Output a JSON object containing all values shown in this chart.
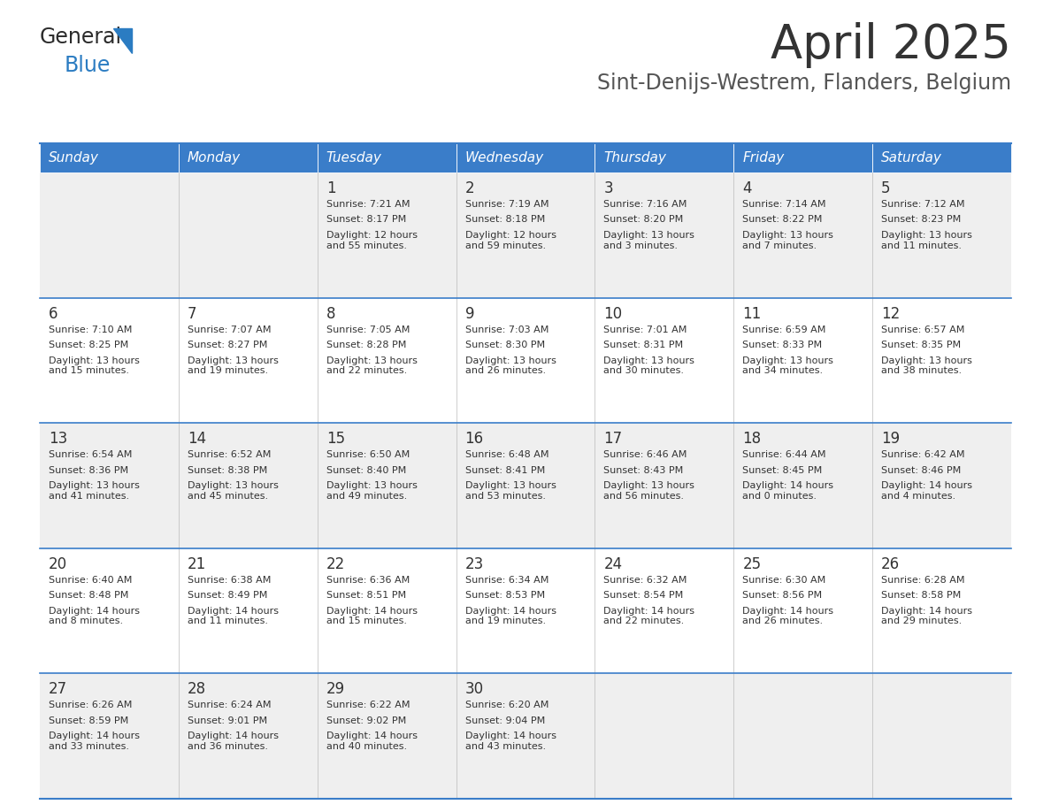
{
  "title": "April 2025",
  "subtitle": "Sint-Denijs-Westrem, Flanders, Belgium",
  "days_of_week": [
    "Sunday",
    "Monday",
    "Tuesday",
    "Wednesday",
    "Thursday",
    "Friday",
    "Saturday"
  ],
  "header_bg": "#3A7DC9",
  "header_text": "#FFFFFF",
  "row_bg_even": "#EFEFEF",
  "row_bg_odd": "#FFFFFF",
  "separator_color": "#3A7DC9",
  "title_color": "#333333",
  "subtitle_color": "#555555",
  "cell_text_color": "#333333",
  "day_number_color": "#333333",
  "calendar": [
    [
      {
        "day": "",
        "sunrise": "",
        "sunset": "",
        "daylight": ""
      },
      {
        "day": "",
        "sunrise": "",
        "sunset": "",
        "daylight": ""
      },
      {
        "day": "1",
        "sunrise": "Sunrise: 7:21 AM",
        "sunset": "Sunset: 8:17 PM",
        "daylight": "Daylight: 12 hours\nand 55 minutes."
      },
      {
        "day": "2",
        "sunrise": "Sunrise: 7:19 AM",
        "sunset": "Sunset: 8:18 PM",
        "daylight": "Daylight: 12 hours\nand 59 minutes."
      },
      {
        "day": "3",
        "sunrise": "Sunrise: 7:16 AM",
        "sunset": "Sunset: 8:20 PM",
        "daylight": "Daylight: 13 hours\nand 3 minutes."
      },
      {
        "day": "4",
        "sunrise": "Sunrise: 7:14 AM",
        "sunset": "Sunset: 8:22 PM",
        "daylight": "Daylight: 13 hours\nand 7 minutes."
      },
      {
        "day": "5",
        "sunrise": "Sunrise: 7:12 AM",
        "sunset": "Sunset: 8:23 PM",
        "daylight": "Daylight: 13 hours\nand 11 minutes."
      }
    ],
    [
      {
        "day": "6",
        "sunrise": "Sunrise: 7:10 AM",
        "sunset": "Sunset: 8:25 PM",
        "daylight": "Daylight: 13 hours\nand 15 minutes."
      },
      {
        "day": "7",
        "sunrise": "Sunrise: 7:07 AM",
        "sunset": "Sunset: 8:27 PM",
        "daylight": "Daylight: 13 hours\nand 19 minutes."
      },
      {
        "day": "8",
        "sunrise": "Sunrise: 7:05 AM",
        "sunset": "Sunset: 8:28 PM",
        "daylight": "Daylight: 13 hours\nand 22 minutes."
      },
      {
        "day": "9",
        "sunrise": "Sunrise: 7:03 AM",
        "sunset": "Sunset: 8:30 PM",
        "daylight": "Daylight: 13 hours\nand 26 minutes."
      },
      {
        "day": "10",
        "sunrise": "Sunrise: 7:01 AM",
        "sunset": "Sunset: 8:31 PM",
        "daylight": "Daylight: 13 hours\nand 30 minutes."
      },
      {
        "day": "11",
        "sunrise": "Sunrise: 6:59 AM",
        "sunset": "Sunset: 8:33 PM",
        "daylight": "Daylight: 13 hours\nand 34 minutes."
      },
      {
        "day": "12",
        "sunrise": "Sunrise: 6:57 AM",
        "sunset": "Sunset: 8:35 PM",
        "daylight": "Daylight: 13 hours\nand 38 minutes."
      }
    ],
    [
      {
        "day": "13",
        "sunrise": "Sunrise: 6:54 AM",
        "sunset": "Sunset: 8:36 PM",
        "daylight": "Daylight: 13 hours\nand 41 minutes."
      },
      {
        "day": "14",
        "sunrise": "Sunrise: 6:52 AM",
        "sunset": "Sunset: 8:38 PM",
        "daylight": "Daylight: 13 hours\nand 45 minutes."
      },
      {
        "day": "15",
        "sunrise": "Sunrise: 6:50 AM",
        "sunset": "Sunset: 8:40 PM",
        "daylight": "Daylight: 13 hours\nand 49 minutes."
      },
      {
        "day": "16",
        "sunrise": "Sunrise: 6:48 AM",
        "sunset": "Sunset: 8:41 PM",
        "daylight": "Daylight: 13 hours\nand 53 minutes."
      },
      {
        "day": "17",
        "sunrise": "Sunrise: 6:46 AM",
        "sunset": "Sunset: 8:43 PM",
        "daylight": "Daylight: 13 hours\nand 56 minutes."
      },
      {
        "day": "18",
        "sunrise": "Sunrise: 6:44 AM",
        "sunset": "Sunset: 8:45 PM",
        "daylight": "Daylight: 14 hours\nand 0 minutes."
      },
      {
        "day": "19",
        "sunrise": "Sunrise: 6:42 AM",
        "sunset": "Sunset: 8:46 PM",
        "daylight": "Daylight: 14 hours\nand 4 minutes."
      }
    ],
    [
      {
        "day": "20",
        "sunrise": "Sunrise: 6:40 AM",
        "sunset": "Sunset: 8:48 PM",
        "daylight": "Daylight: 14 hours\nand 8 minutes."
      },
      {
        "day": "21",
        "sunrise": "Sunrise: 6:38 AM",
        "sunset": "Sunset: 8:49 PM",
        "daylight": "Daylight: 14 hours\nand 11 minutes."
      },
      {
        "day": "22",
        "sunrise": "Sunrise: 6:36 AM",
        "sunset": "Sunset: 8:51 PM",
        "daylight": "Daylight: 14 hours\nand 15 minutes."
      },
      {
        "day": "23",
        "sunrise": "Sunrise: 6:34 AM",
        "sunset": "Sunset: 8:53 PM",
        "daylight": "Daylight: 14 hours\nand 19 minutes."
      },
      {
        "day": "24",
        "sunrise": "Sunrise: 6:32 AM",
        "sunset": "Sunset: 8:54 PM",
        "daylight": "Daylight: 14 hours\nand 22 minutes."
      },
      {
        "day": "25",
        "sunrise": "Sunrise: 6:30 AM",
        "sunset": "Sunset: 8:56 PM",
        "daylight": "Daylight: 14 hours\nand 26 minutes."
      },
      {
        "day": "26",
        "sunrise": "Sunrise: 6:28 AM",
        "sunset": "Sunset: 8:58 PM",
        "daylight": "Daylight: 14 hours\nand 29 minutes."
      }
    ],
    [
      {
        "day": "27",
        "sunrise": "Sunrise: 6:26 AM",
        "sunset": "Sunset: 8:59 PM",
        "daylight": "Daylight: 14 hours\nand 33 minutes."
      },
      {
        "day": "28",
        "sunrise": "Sunrise: 6:24 AM",
        "sunset": "Sunset: 9:01 PM",
        "daylight": "Daylight: 14 hours\nand 36 minutes."
      },
      {
        "day": "29",
        "sunrise": "Sunrise: 6:22 AM",
        "sunset": "Sunset: 9:02 PM",
        "daylight": "Daylight: 14 hours\nand 40 minutes."
      },
      {
        "day": "30",
        "sunrise": "Sunrise: 6:20 AM",
        "sunset": "Sunset: 9:04 PM",
        "daylight": "Daylight: 14 hours\nand 43 minutes."
      },
      {
        "day": "",
        "sunrise": "",
        "sunset": "",
        "daylight": ""
      },
      {
        "day": "",
        "sunrise": "",
        "sunset": "",
        "daylight": ""
      },
      {
        "day": "",
        "sunrise": "",
        "sunset": "",
        "daylight": ""
      }
    ]
  ],
  "logo_general_color": "#2B2B2B",
  "logo_blue_color": "#2B7CC2",
  "fig_width": 11.88,
  "fig_height": 9.18,
  "dpi": 100
}
